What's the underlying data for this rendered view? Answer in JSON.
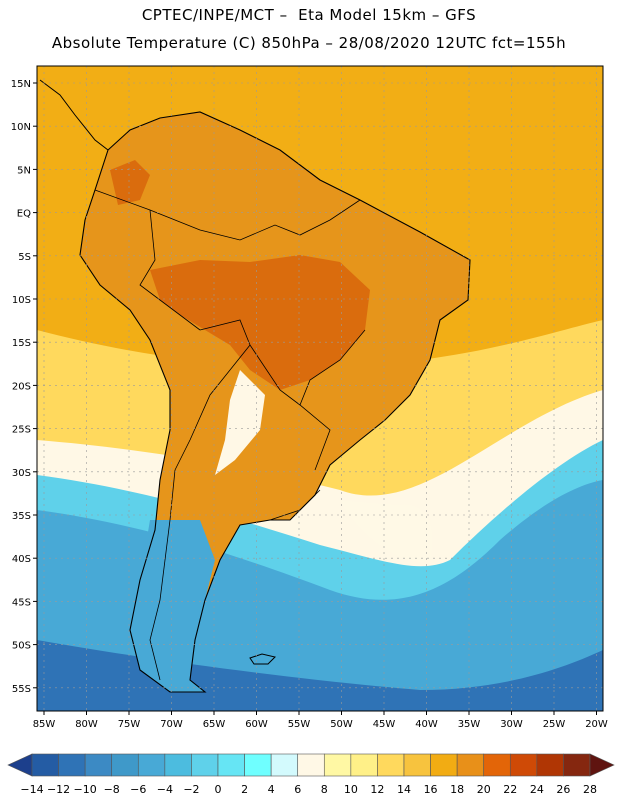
{
  "header": {
    "line1": "CPTEC/INPE/MCT –  Eta Model 15km – GFS",
    "line2": "Absolute Temperature (C) 850hPa – 28/08/2020 12UTC fct=155h"
  },
  "map": {
    "region": "South America",
    "variable": "Absolute Temperature (C)",
    "level": "850hPa",
    "lat_labels": [
      "15N",
      "10N",
      "5N",
      "EQ",
      "5S",
      "10S",
      "15S",
      "20S",
      "25S",
      "30S",
      "35S",
      "40S",
      "45S",
      "50S",
      "55S"
    ],
    "lon_labels": [
      "85W",
      "80W",
      "75W",
      "70W",
      "65W",
      "60W",
      "55W",
      "50W",
      "45W",
      "40W",
      "35W",
      "30W",
      "25W",
      "20W"
    ]
  },
  "colorbar": {
    "labels": [
      "-14",
      "-12",
      "-10",
      "-8",
      "-6",
      "-4",
      "-2",
      "0",
      "2",
      "4",
      "6",
      "8",
      "10",
      "12",
      "14",
      "16",
      "18",
      "20",
      "22",
      "24",
      "26",
      "28"
    ],
    "colors": [
      "#1c3f8c",
      "#245ca4",
      "#2f73b6",
      "#3c8ac4",
      "#3f99c9",
      "#48a9d6",
      "#4cbcdf",
      "#5fd1ea",
      "#66e5f4",
      "#6fffff",
      "#d3fafd",
      "#fff8e6",
      "#fff8a4",
      "#fff088",
      "#ffd95d",
      "#f7c33e",
      "#f2ac13",
      "#e89019",
      "#e36508",
      "#cf4a06",
      "#b03604",
      "#85270f",
      "#5f1410"
    ]
  },
  "fill_colors": {
    "land": "#e6951b",
    "hot": "#da6c0d",
    "warm_ocean": "#f2ae15",
    "cool_band": "#ffd95d",
    "mild_band": "#fff8e6",
    "cold_band": "#5fd1ea",
    "sea_base": "#48a9d6",
    "deep_sea": "#2f73b6"
  }
}
